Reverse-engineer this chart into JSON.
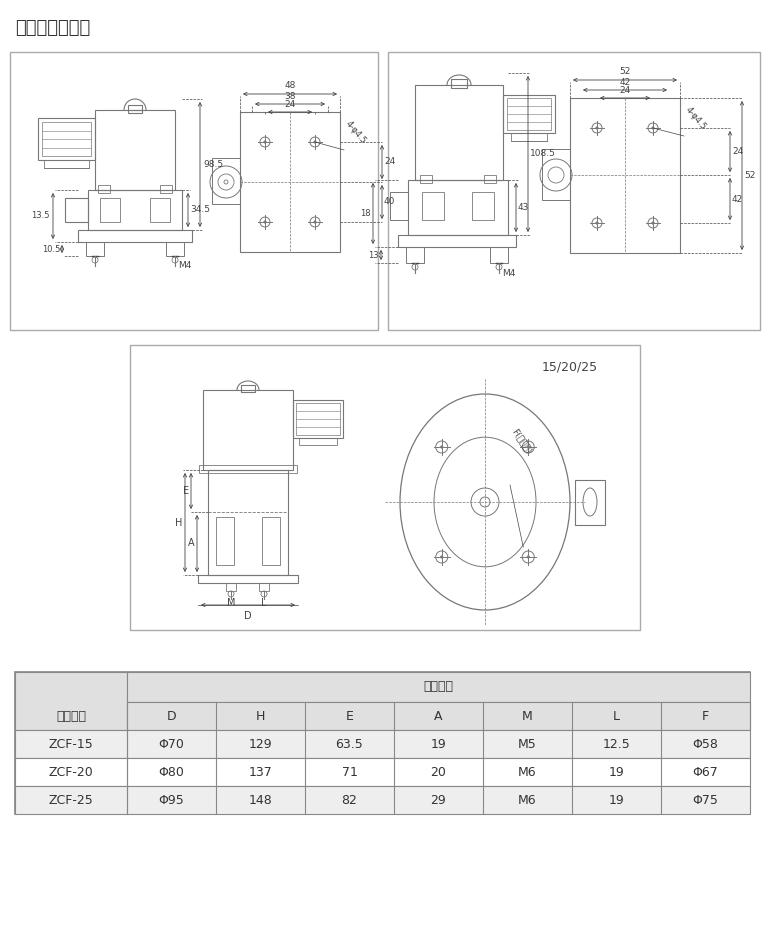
{
  "title": "结构外型尺寸图",
  "title_fontsize": 13,
  "bg_color": "#ffffff",
  "border_color": "#999999",
  "line_color": "#777777",
  "dark_line": "#444444",
  "table_header_bg": "#e0e0e0",
  "table_row_bg1": "#eeeeee",
  "table_cols": [
    "D",
    "H",
    "E",
    "A",
    "M",
    "L",
    "F"
  ],
  "table_rows": [
    [
      "ZCF-15",
      "Φ70",
      "129",
      "63.5",
      "19",
      "M5",
      "12.5",
      "Φ58"
    ],
    [
      "ZCF-20",
      "Φ80",
      "137",
      "71",
      "20",
      "M6",
      "19",
      "Φ67"
    ],
    [
      "ZCF-25",
      "Φ95",
      "148",
      "82",
      "29",
      "M6",
      "19",
      "Φ75"
    ]
  ],
  "diagram3_label": "15/20/25"
}
